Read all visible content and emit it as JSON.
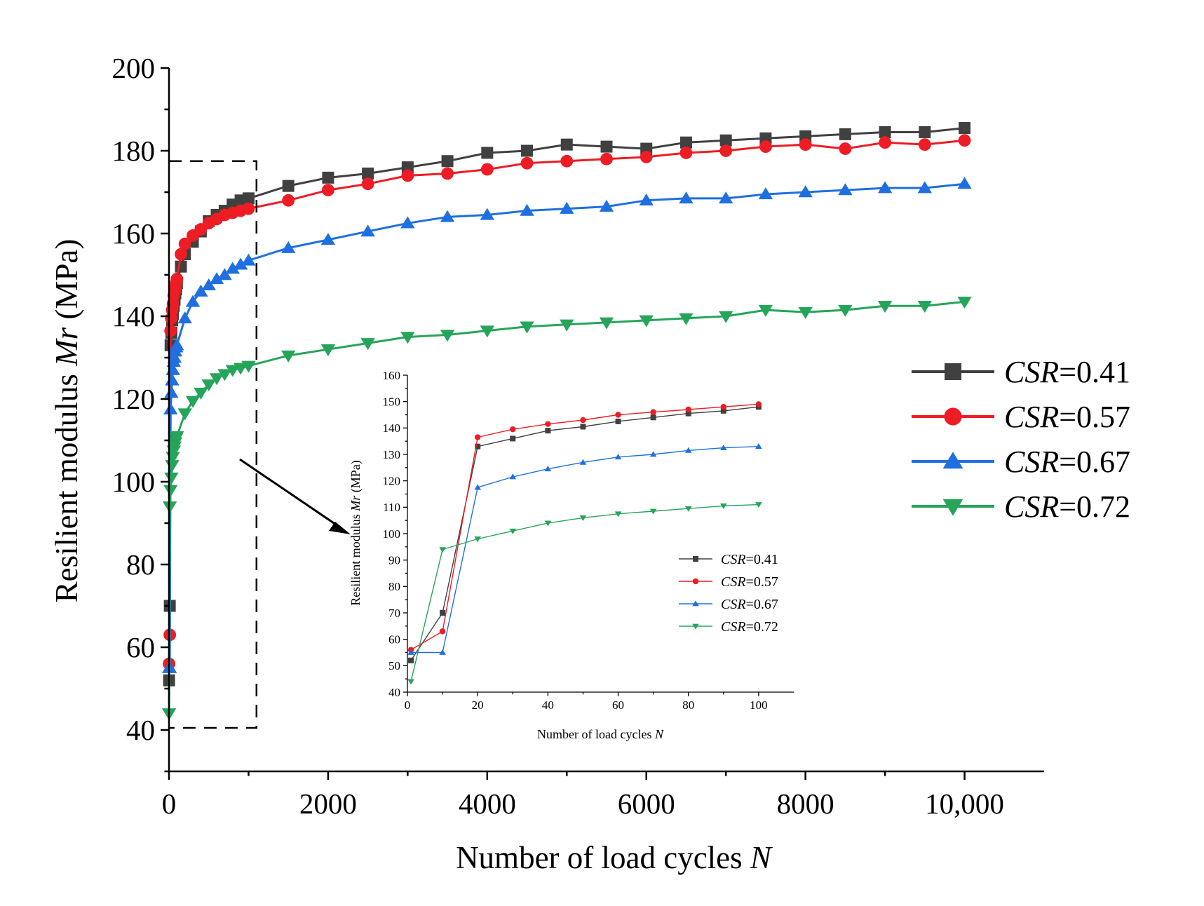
{
  "chart_data": [
    {
      "type": "line",
      "id": "main",
      "title": "",
      "xlabel": "Number of load cycles",
      "xlabel_var": "N",
      "ylabel": "Resilient modulus",
      "ylabel_var": "Mr",
      "ylabel_unit": "(MPa)",
      "xlim": [
        0,
        11000
      ],
      "ylim": [
        30,
        200
      ],
      "xticks": [
        0,
        2000,
        4000,
        6000,
        8000,
        10000
      ],
      "xtick_labels": [
        "0",
        "2000",
        "4000",
        "6000",
        "8000",
        "10,000"
      ],
      "yticks": [
        40,
        60,
        80,
        100,
        120,
        140,
        160,
        180,
        200
      ],
      "ytick_labels": [
        "40",
        "60",
        "80",
        "100",
        "120",
        "140",
        "160",
        "180",
        "200"
      ],
      "legend_position": "right",
      "series": [
        {
          "name": "CSR=0.41",
          "name_var": "CSR",
          "name_val": "=0.41",
          "color": "#404040",
          "marker": "square",
          "x": [
            1,
            10,
            20,
            30,
            40,
            50,
            60,
            70,
            80,
            90,
            100,
            150,
            200,
            300,
            400,
            500,
            600,
            700,
            800,
            900,
            1000,
            1500,
            2000,
            2500,
            3000,
            3500,
            4000,
            4500,
            5000,
            5500,
            6000,
            6500,
            7000,
            7500,
            8000,
            8500,
            9000,
            9500,
            10000
          ],
          "y": [
            52,
            70,
            133,
            136,
            139,
            140.5,
            142.5,
            144,
            145.5,
            146.5,
            148,
            152,
            155,
            158,
            160.5,
            163,
            164.5,
            165.5,
            167,
            168,
            168.5,
            171.5,
            173.5,
            174.5,
            176,
            177.5,
            179.5,
            180,
            181.5,
            181,
            180.5,
            182,
            182.5,
            183,
            183.5,
            184,
            184.5,
            184.5,
            185.5
          ]
        },
        {
          "name": "CSR=0.57",
          "name_var": "CSR",
          "name_val": "=0.57",
          "color": "#ee1c24",
          "marker": "circle",
          "x": [
            1,
            10,
            20,
            30,
            40,
            50,
            60,
            70,
            80,
            90,
            100,
            150,
            200,
            300,
            400,
            500,
            600,
            700,
            800,
            900,
            1000,
            1500,
            2000,
            2500,
            3000,
            3500,
            4000,
            4500,
            5000,
            5500,
            6000,
            6500,
            7000,
            7500,
            8000,
            8500,
            9000,
            9500,
            10000
          ],
          "y": [
            56,
            63,
            136.5,
            139.5,
            141.5,
            143,
            145,
            146,
            147,
            148,
            149,
            155,
            157.5,
            159.5,
            161,
            162.5,
            163.5,
            164.5,
            165,
            165.5,
            166,
            168,
            170.5,
            172,
            174,
            174.5,
            175.5,
            177,
            177.5,
            178,
            178.5,
            179.5,
            180,
            181,
            181.5,
            180.5,
            182,
            181.5,
            182.5
          ]
        },
        {
          "name": "CSR=0.67",
          "name_var": "CSR",
          "name_val": "=0.67",
          "color": "#1f6fe0",
          "marker": "triangle-up",
          "x": [
            1,
            10,
            20,
            30,
            40,
            50,
            60,
            70,
            80,
            90,
            100,
            200,
            300,
            400,
            500,
            600,
            700,
            800,
            900,
            1000,
            1500,
            2000,
            2500,
            3000,
            3500,
            4000,
            4500,
            5000,
            5500,
            6000,
            6500,
            7000,
            7500,
            8000,
            8500,
            9000,
            9500,
            10000
          ],
          "y": [
            55,
            55,
            117.5,
            121.5,
            124.5,
            127,
            129,
            130,
            131.5,
            132.5,
            133,
            139.5,
            143.5,
            146,
            147.5,
            149,
            150,
            151.5,
            152.5,
            153.5,
            156.5,
            158.5,
            160.5,
            162.5,
            164,
            164.5,
            165.5,
            166,
            166.5,
            168,
            168.5,
            168.5,
            169.5,
            170,
            170.5,
            171,
            171,
            172
          ]
        },
        {
          "name": "CSR=0.72",
          "name_var": "CSR",
          "name_val": "=0.72",
          "color": "#26a55a",
          "marker": "triangle-down",
          "x": [
            1,
            10,
            20,
            30,
            40,
            50,
            60,
            70,
            80,
            90,
            100,
            200,
            300,
            400,
            500,
            600,
            700,
            800,
            900,
            1000,
            1500,
            2000,
            2500,
            3000,
            3500,
            4000,
            4500,
            5000,
            5500,
            6000,
            6500,
            7000,
            7500,
            8000,
            8500,
            9000,
            9500,
            10000
          ],
          "y": [
            44,
            94,
            98,
            101,
            104,
            106,
            107.5,
            108.5,
            109.5,
            110.5,
            111,
            116.5,
            119.5,
            121.5,
            123.5,
            125,
            126,
            127,
            127.5,
            128,
            130.5,
            132,
            133.5,
            135,
            135.5,
            136.5,
            137.5,
            138,
            138.5,
            139,
            139.5,
            140,
            141.5,
            141,
            141.5,
            142.5,
            142.5,
            143.5
          ]
        }
      ],
      "zoom_box": {
        "x_range": [
          0,
          1100
        ],
        "y_range": [
          40.5,
          177.5
        ]
      }
    },
    {
      "type": "line",
      "id": "inset",
      "title": "",
      "xlabel": "Number of load cycles",
      "xlabel_var": "N",
      "ylabel": "Resilient modulus",
      "ylabel_var": "Mr",
      "ylabel_unit": "(MPa)",
      "xlim": [
        0,
        110
      ],
      "ylim": [
        40,
        160
      ],
      "xticks": [
        0,
        20,
        40,
        60,
        80,
        100
      ],
      "xtick_labels": [
        "0",
        "20",
        "40",
        "60",
        "80",
        "100"
      ],
      "yticks": [
        40,
        50,
        60,
        70,
        80,
        90,
        100,
        110,
        120,
        130,
        140,
        150,
        160
      ],
      "ytick_labels": [
        "40",
        "50",
        "60",
        "70",
        "80",
        "90",
        "100",
        "110",
        "120",
        "130",
        "140",
        "150",
        "160"
      ],
      "legend_position": "center-right",
      "series": [
        {
          "name": "CSR=0.41",
          "name_var": "CSR",
          "name_val": "=0.41",
          "color": "#404040",
          "marker": "square",
          "x": [
            1,
            10,
            20,
            30,
            40,
            50,
            60,
            70,
            80,
            90,
            100
          ],
          "y": [
            52,
            70,
            133,
            136,
            139,
            140.5,
            142.5,
            144,
            145.5,
            146.5,
            148
          ]
        },
        {
          "name": "CSR=0.57",
          "name_var": "CSR",
          "name_val": "=0.57",
          "color": "#ee1c24",
          "marker": "circle",
          "x": [
            1,
            10,
            20,
            30,
            40,
            50,
            60,
            70,
            80,
            90,
            100
          ],
          "y": [
            56,
            63,
            136.5,
            139.5,
            141.5,
            143,
            145,
            146,
            147,
            148,
            149
          ]
        },
        {
          "name": "CSR=0.67",
          "name_var": "CSR",
          "name_val": "=0.67",
          "color": "#1f6fe0",
          "marker": "triangle-up",
          "x": [
            1,
            10,
            20,
            30,
            40,
            50,
            60,
            70,
            80,
            90,
            100
          ],
          "y": [
            55,
            55,
            117.5,
            121.5,
            124.5,
            127,
            129,
            130,
            131.5,
            132.5,
            133
          ]
        },
        {
          "name": "CSR=0.72",
          "name_var": "CSR",
          "name_val": "=0.72",
          "color": "#26a55a",
          "marker": "triangle-down",
          "x": [
            1,
            10,
            20,
            30,
            40,
            50,
            60,
            70,
            80,
            90,
            100
          ],
          "y": [
            44,
            94,
            98,
            101,
            104,
            106,
            107.5,
            108.5,
            109.5,
            110.5,
            111
          ]
        }
      ]
    }
  ]
}
